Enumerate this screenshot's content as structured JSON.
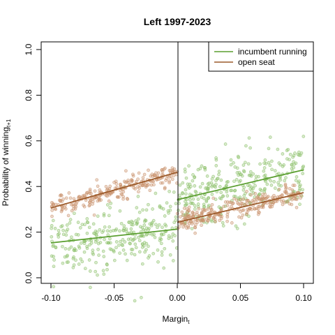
{
  "chart_data": {
    "type": "scatter",
    "title": "Left 1997-2023",
    "xlabel": "Margin",
    "xlabel_sub": "t",
    "ylabel": "Probability of winning",
    "ylabel_sub": "t+1",
    "xlim": [
      -0.1,
      0.1
    ],
    "ylim": [
      0.0,
      1.0
    ],
    "xticks": [
      -0.1,
      -0.05,
      0.0,
      0.05,
      0.1
    ],
    "xtick_labels": [
      "-0.10",
      "-0.05",
      "0.00",
      "0.05",
      "0.10"
    ],
    "yticks": [
      0.0,
      0.2,
      0.4,
      0.6,
      0.8,
      1.0
    ],
    "ytick_labels": [
      "0.0",
      "0.2",
      "0.4",
      "0.6",
      "0.8",
      "1.0"
    ],
    "cutoff_line_x": 0.0,
    "legend_position": "top-right",
    "series": [
      {
        "name": "incumbent running",
        "color": "#5a9e2f",
        "point_color": "#8cc06a",
        "left_fit": {
          "x": [
            -0.1,
            0.0
          ],
          "y": [
            0.153,
            0.213
          ]
        },
        "right_fit": {
          "x": [
            0.0,
            0.1
          ],
          "y": [
            0.342,
            0.473
          ]
        },
        "point_spread": 0.07,
        "n_points_left": 300,
        "n_points_right": 320
      },
      {
        "name": "open seat",
        "color": "#9c5a2a",
        "point_color": "#c8906a",
        "left_fit": {
          "x": [
            -0.1,
            0.0
          ],
          "y": [
            0.306,
            0.462
          ]
        },
        "right_fit": {
          "x": [
            0.0,
            0.1
          ],
          "y": [
            0.243,
            0.373
          ]
        },
        "point_spread": 0.022,
        "n_points_left": 250,
        "n_points_right": 280
      }
    ]
  }
}
